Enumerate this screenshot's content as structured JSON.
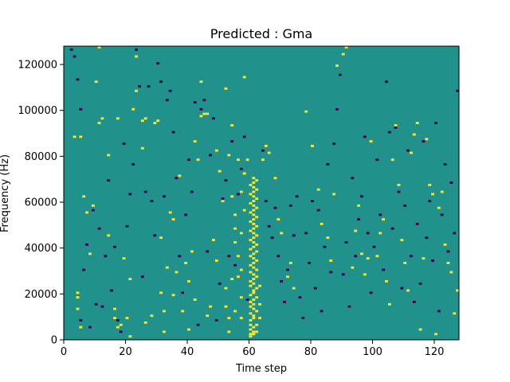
{
  "chart_data": {
    "type": "heatmap",
    "title": "Predicted : Gma",
    "xlabel": "Time step",
    "ylabel": "Frequency (Hz)",
    "xlim": [
      0,
      128
    ],
    "ylim": [
      0,
      128000
    ],
    "x_ticks": [
      0,
      20,
      40,
      60,
      80,
      100,
      120
    ],
    "x_tick_labels": [
      "0",
      "20",
      "40",
      "60",
      "80",
      "100",
      "120"
    ],
    "y_ticks": [
      0,
      20000,
      40000,
      60000,
      80000,
      100000,
      120000
    ],
    "y_tick_labels": [
      "0",
      "20000",
      "40000",
      "60000",
      "80000",
      "100000",
      "120000"
    ],
    "grid": false,
    "rows": 128,
    "cols": 128,
    "colors": {
      "background": "#21918c",
      "high": "#fde725",
      "low": "#440154"
    },
    "cells": {
      "high": [
        [
          60,
          1
        ],
        [
          60,
          2
        ],
        [
          61,
          2
        ],
        [
          61,
          3
        ],
        [
          62,
          3
        ],
        [
          60,
          4
        ],
        [
          61,
          5
        ],
        [
          60,
          6
        ],
        [
          62,
          6
        ],
        [
          60,
          8
        ],
        [
          61,
          9
        ],
        [
          63,
          9
        ],
        [
          61,
          10
        ],
        [
          60,
          11
        ],
        [
          62,
          12
        ],
        [
          61,
          13
        ],
        [
          60,
          14
        ],
        [
          61,
          15
        ],
        [
          63,
          15
        ],
        [
          60,
          16
        ],
        [
          61,
          17
        ],
        [
          62,
          18
        ],
        [
          60,
          19
        ],
        [
          61,
          20
        ],
        [
          61,
          21
        ],
        [
          62,
          22
        ],
        [
          60,
          23
        ],
        [
          63,
          23
        ],
        [
          61,
          24
        ],
        [
          60,
          25
        ],
        [
          61,
          26
        ],
        [
          62,
          27
        ],
        [
          61,
          28
        ],
        [
          60,
          29
        ],
        [
          62,
          30
        ],
        [
          61,
          31
        ],
        [
          60,
          32
        ],
        [
          61,
          33
        ],
        [
          62,
          34
        ],
        [
          61,
          35
        ],
        [
          60,
          36
        ],
        [
          61,
          37
        ],
        [
          62,
          38
        ],
        [
          60,
          39
        ],
        [
          61,
          40
        ],
        [
          62,
          41
        ],
        [
          61,
          42
        ],
        [
          60,
          43
        ],
        [
          61,
          44
        ],
        [
          62,
          45
        ],
        [
          61,
          46
        ],
        [
          60,
          47
        ],
        [
          61,
          48
        ],
        [
          62,
          49
        ],
        [
          61,
          50
        ],
        [
          60,
          51
        ],
        [
          61,
          52
        ],
        [
          62,
          53
        ],
        [
          61,
          54
        ],
        [
          60,
          55
        ],
        [
          61,
          56
        ],
        [
          62,
          57
        ],
        [
          61,
          58
        ],
        [
          60,
          59
        ],
        [
          61,
          60
        ],
        [
          62,
          61
        ],
        [
          61,
          62
        ],
        [
          60,
          63
        ],
        [
          61,
          64
        ],
        [
          62,
          65
        ],
        [
          61,
          66
        ],
        [
          60,
          67
        ],
        [
          61,
          68
        ],
        [
          62,
          69
        ],
        [
          61,
          70
        ],
        [
          57,
          9
        ],
        [
          57,
          18
        ],
        [
          57,
          30
        ],
        [
          56,
          36
        ],
        [
          55,
          42
        ],
        [
          55,
          48
        ],
        [
          57,
          46
        ],
        [
          58,
          56
        ],
        [
          58,
          72
        ],
        [
          55,
          54
        ],
        [
          54,
          26
        ],
        [
          55,
          12
        ],
        [
          53,
          9
        ],
        [
          52,
          22
        ],
        [
          54,
          62
        ],
        [
          53,
          3
        ],
        [
          52,
          14
        ],
        [
          56,
          78
        ],
        [
          4,
          13
        ],
        [
          4,
          18
        ],
        [
          4,
          20
        ],
        [
          5,
          5
        ],
        [
          3,
          88
        ],
        [
          5,
          88
        ],
        [
          6,
          62
        ],
        [
          7,
          55
        ],
        [
          8,
          37
        ],
        [
          9,
          58
        ],
        [
          10,
          112
        ],
        [
          11,
          127
        ],
        [
          11,
          94
        ],
        [
          12,
          96
        ],
        [
          14,
          80
        ],
        [
          14,
          45
        ],
        [
          16,
          9
        ],
        [
          16,
          13
        ],
        [
          17,
          5
        ],
        [
          17,
          96
        ],
        [
          18,
          6
        ],
        [
          19,
          35
        ],
        [
          20,
          9
        ],
        [
          21,
          1
        ],
        [
          21,
          26
        ],
        [
          22,
          100
        ],
        [
          23,
          108
        ],
        [
          23,
          123
        ],
        [
          25,
          95
        ],
        [
          25,
          83
        ],
        [
          26,
          96
        ],
        [
          26,
          7
        ],
        [
          28,
          10
        ],
        [
          29,
          94
        ],
        [
          30,
          95
        ],
        [
          31,
          44
        ],
        [
          31,
          20
        ],
        [
          32,
          3
        ],
        [
          32,
          12
        ],
        [
          33,
          31
        ],
        [
          34,
          55
        ],
        [
          35,
          19
        ],
        [
          35,
          52
        ],
        [
          36,
          29
        ],
        [
          37,
          71
        ],
        [
          38,
          12
        ],
        [
          38,
          20
        ],
        [
          39,
          33
        ],
        [
          40,
          25
        ],
        [
          40,
          4
        ],
        [
          41,
          38
        ],
        [
          42,
          17
        ],
        [
          42,
          86
        ],
        [
          43,
          78
        ],
        [
          44,
          97
        ],
        [
          44,
          112
        ],
        [
          45,
          98
        ],
        [
          46,
          98
        ],
        [
          46,
          10
        ],
        [
          47,
          14
        ],
        [
          48,
          43
        ],
        [
          49,
          34
        ],
        [
          49,
          82
        ],
        [
          50,
          73
        ],
        [
          51,
          60
        ],
        [
          52,
          109
        ],
        [
          53,
          80
        ],
        [
          54,
          93
        ],
        [
          56,
          27
        ],
        [
          57,
          64
        ],
        [
          58,
          114
        ],
        [
          58,
          72
        ],
        [
          59,
          78
        ],
        [
          64,
          78
        ],
        [
          65,
          84
        ],
        [
          66,
          81
        ],
        [
          68,
          70
        ],
        [
          69,
          52
        ],
        [
          70,
          46
        ],
        [
          72,
          27
        ],
        [
          73,
          33
        ],
        [
          74,
          22
        ],
        [
          78,
          99
        ],
        [
          80,
          84
        ],
        [
          82,
          65
        ],
        [
          83,
          50
        ],
        [
          85,
          44
        ],
        [
          86,
          34
        ],
        [
          87,
          63
        ],
        [
          88,
          119
        ],
        [
          89,
          115
        ],
        [
          90,
          124
        ],
        [
          91,
          127
        ],
        [
          92,
          14
        ],
        [
          93,
          31
        ],
        [
          94,
          47
        ],
        [
          95,
          58
        ],
        [
          96,
          37
        ],
        [
          97,
          28
        ],
        [
          98,
          35
        ],
        [
          99,
          86
        ],
        [
          101,
          36
        ],
        [
          102,
          46
        ],
        [
          103,
          52
        ],
        [
          104,
          25
        ],
        [
          105,
          15
        ],
        [
          106,
          78
        ],
        [
          107,
          93
        ],
        [
          108,
          67
        ],
        [
          109,
          43
        ],
        [
          110,
          33
        ],
        [
          111,
          21
        ],
        [
          112,
          81
        ],
        [
          113,
          89
        ],
        [
          114,
          94
        ],
        [
          115,
          4
        ],
        [
          116,
          35
        ],
        [
          117,
          87
        ],
        [
          118,
          67
        ],
        [
          119,
          63
        ],
        [
          120,
          2
        ],
        [
          121,
          57
        ],
        [
          122,
          64
        ],
        [
          123,
          41
        ],
        [
          124,
          33
        ],
        [
          125,
          29
        ],
        [
          126,
          11
        ],
        [
          127,
          21
        ]
      ],
      "low": [
        [
          2,
          126
        ],
        [
          3,
          123
        ],
        [
          4,
          113
        ],
        [
          5,
          8
        ],
        [
          5,
          100
        ],
        [
          6,
          30
        ],
        [
          7,
          41
        ],
        [
          8,
          5
        ],
        [
          9,
          56
        ],
        [
          10,
          15
        ],
        [
          11,
          48
        ],
        [
          12,
          14
        ],
        [
          13,
          36
        ],
        [
          14,
          69
        ],
        [
          15,
          21
        ],
        [
          16,
          40
        ],
        [
          17,
          8
        ],
        [
          18,
          3
        ],
        [
          19,
          85
        ],
        [
          20,
          49
        ],
        [
          21,
          63
        ],
        [
          22,
          76
        ],
        [
          23,
          126
        ],
        [
          24,
          110
        ],
        [
          25,
          27
        ],
        [
          26,
          64
        ],
        [
          27,
          110
        ],
        [
          28,
          60
        ],
        [
          29,
          45
        ],
        [
          30,
          120
        ],
        [
          31,
          112
        ],
        [
          32,
          62
        ],
        [
          33,
          104
        ],
        [
          34,
          108
        ],
        [
          35,
          90
        ],
        [
          36,
          70
        ],
        [
          37,
          36
        ],
        [
          38,
          20
        ],
        [
          39,
          54
        ],
        [
          40,
          78
        ],
        [
          41,
          64
        ],
        [
          42,
          103
        ],
        [
          43,
          6
        ],
        [
          44,
          100
        ],
        [
          45,
          104
        ],
        [
          46,
          38
        ],
        [
          47,
          80
        ],
        [
          48,
          96
        ],
        [
          49,
          8
        ],
        [
          50,
          24
        ],
        [
          51,
          61
        ],
        [
          52,
          69
        ],
        [
          53,
          36
        ],
        [
          54,
          86
        ],
        [
          55,
          32
        ],
        [
          56,
          63
        ],
        [
          57,
          74
        ],
        [
          58,
          88
        ],
        [
          59,
          17
        ],
        [
          64,
          82
        ],
        [
          65,
          60
        ],
        [
          66,
          49
        ],
        [
          67,
          44
        ],
        [
          68,
          57
        ],
        [
          69,
          36
        ],
        [
          70,
          25
        ],
        [
          71,
          16
        ],
        [
          72,
          30
        ],
        [
          73,
          58
        ],
        [
          74,
          45
        ],
        [
          75,
          62
        ],
        [
          76,
          18
        ],
        [
          77,
          9
        ],
        [
          78,
          46
        ],
        [
          79,
          33
        ],
        [
          80,
          60
        ],
        [
          81,
          22
        ],
        [
          82,
          56
        ],
        [
          83,
          12
        ],
        [
          84,
          40
        ],
        [
          85,
          76
        ],
        [
          86,
          29
        ],
        [
          87,
          85
        ],
        [
          88,
          100
        ],
        [
          89,
          115
        ],
        [
          90,
          28
        ],
        [
          91,
          42
        ],
        [
          92,
          14
        ],
        [
          93,
          70
        ],
        [
          94,
          36
        ],
        [
          95,
          52
        ],
        [
          96,
          62
        ],
        [
          97,
          88
        ],
        [
          98,
          46
        ],
        [
          99,
          20
        ],
        [
          100,
          40
        ],
        [
          101,
          78
        ],
        [
          102,
          54
        ],
        [
          103,
          30
        ],
        [
          104,
          112
        ],
        [
          105,
          90
        ],
        [
          106,
          48
        ],
        [
          107,
          92
        ],
        [
          108,
          64
        ],
        [
          109,
          22
        ],
        [
          110,
          58
        ],
        [
          111,
          82
        ],
        [
          112,
          36
        ],
        [
          113,
          16
        ],
        [
          114,
          50
        ],
        [
          115,
          24
        ],
        [
          116,
          86
        ],
        [
          117,
          44
        ],
        [
          118,
          60
        ],
        [
          119,
          34
        ],
        [
          120,
          94
        ],
        [
          121,
          12
        ],
        [
          122,
          54
        ],
        [
          123,
          76
        ],
        [
          124,
          38
        ],
        [
          125,
          68
        ],
        [
          126,
          46
        ],
        [
          127,
          108
        ]
      ]
    }
  }
}
